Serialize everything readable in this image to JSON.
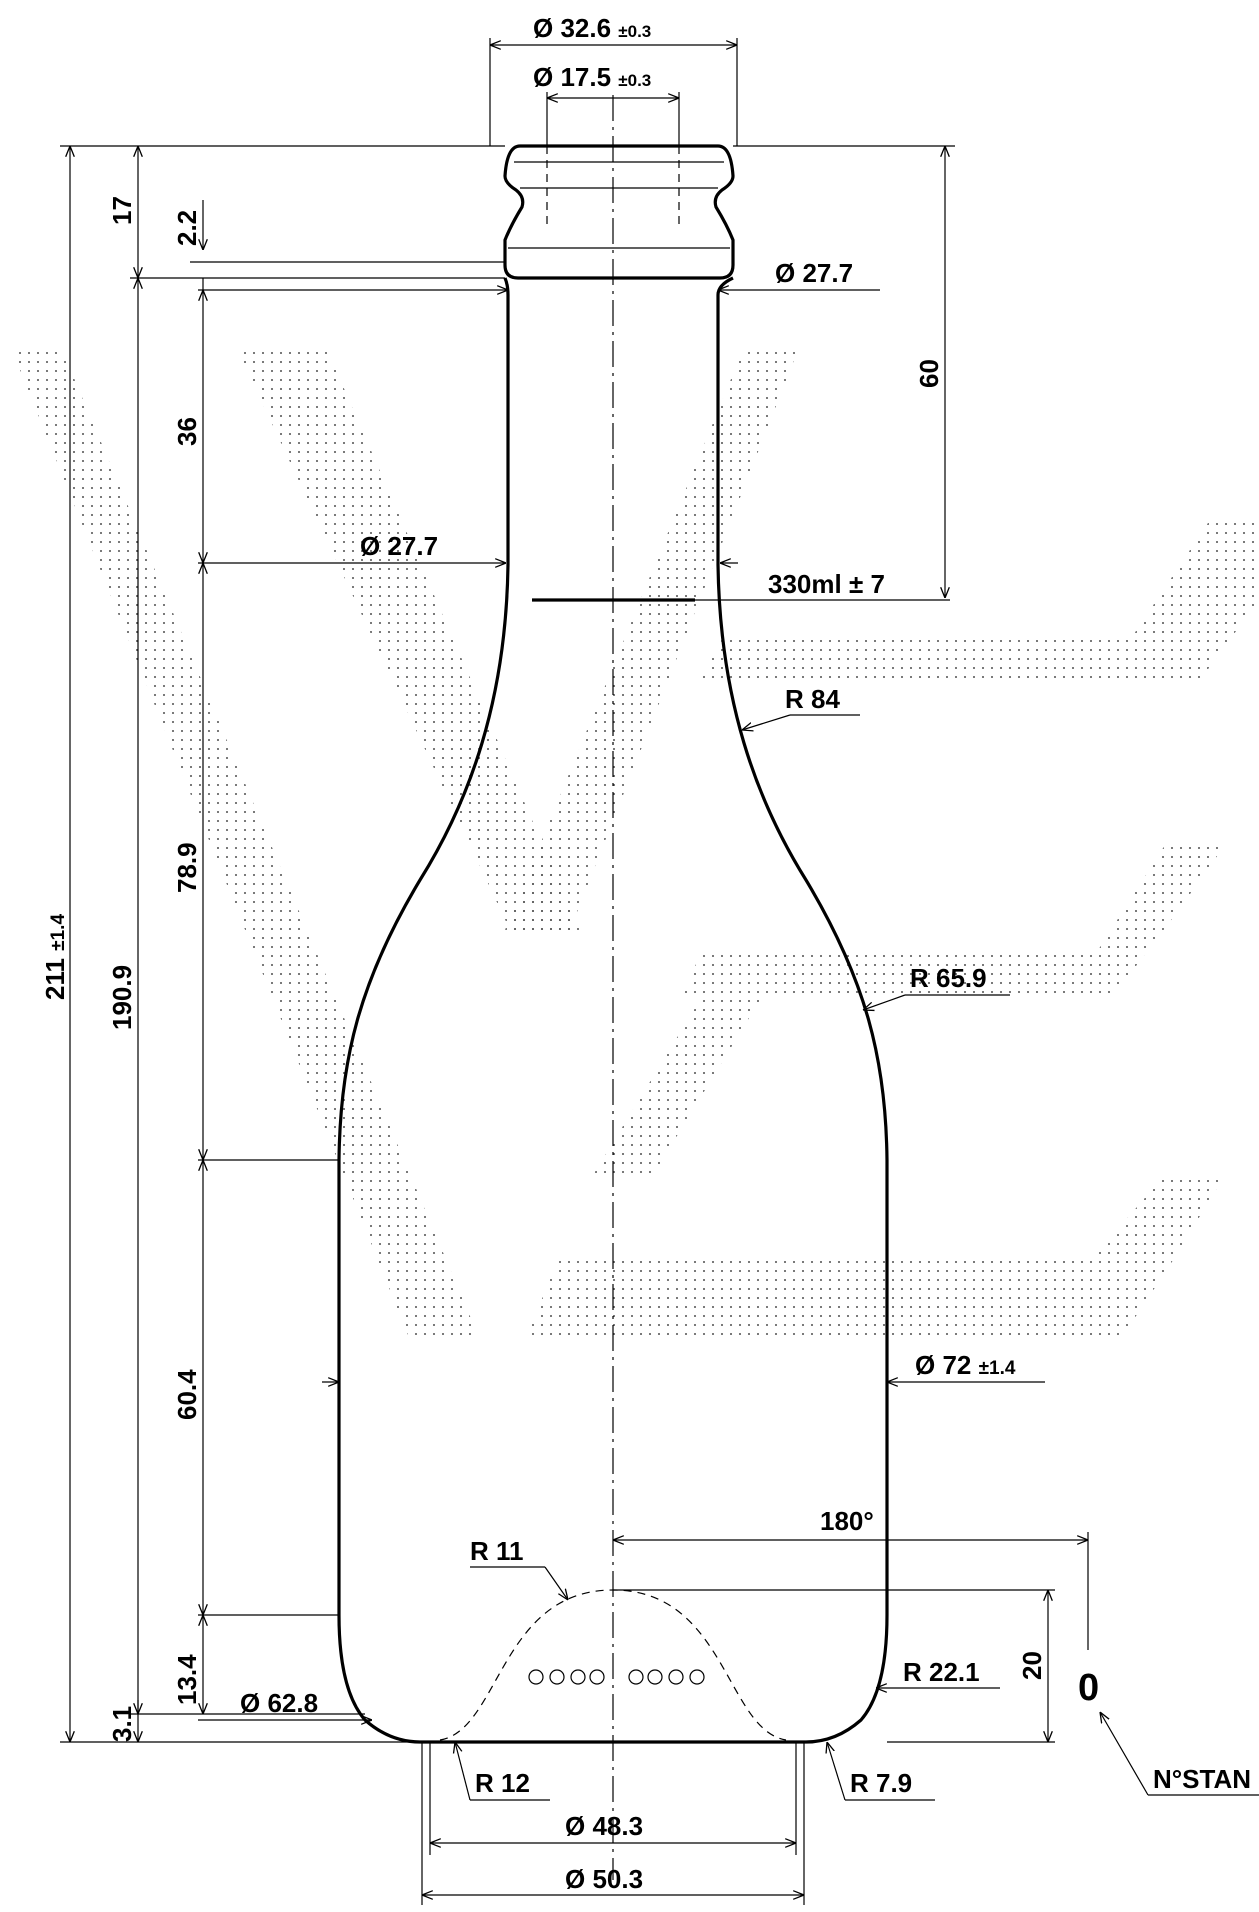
{
  "drawing": {
    "dim_top_outer": "Ø 32.6",
    "dim_top_outer_tol": "±0.3",
    "dim_top_inner": "Ø 17.5",
    "dim_top_inner_tol": "±0.3",
    "dim_neck_upper": "Ø 27.7",
    "dim_neck_lower": "Ø 27.7",
    "dim_fill_level": "330ml ± 7",
    "dim_height_60": "60",
    "dim_height_17": "17",
    "dim_height_2_2": "2.2",
    "dim_height_36": "36",
    "dim_height_78_9": "78.9",
    "dim_height_60_4": "60.4",
    "dim_height_13_4": "13.4",
    "dim_height_3_1": "3.1",
    "dim_height_190_9": "190.9",
    "dim_height_total": "211",
    "dim_height_total_tol": "±1.4",
    "dim_r84": "R 84",
    "dim_r65_9": "R 65.9",
    "dim_body_diameter": "Ø 72",
    "dim_body_diameter_tol": "±1.4",
    "dim_angle": "180°",
    "dim_r11": "R 11",
    "dim_height_20": "20",
    "dim_r22_1": "R 22.1",
    "dim_d62_8": "Ø 62.8",
    "dim_r12": "R 12",
    "dim_r7_9": "R 7.9",
    "dim_d48_3": "Ø 48.3",
    "dim_d50_3": "Ø 50.3",
    "stamp_zero": "0",
    "stamp_label": "N°STAN"
  }
}
